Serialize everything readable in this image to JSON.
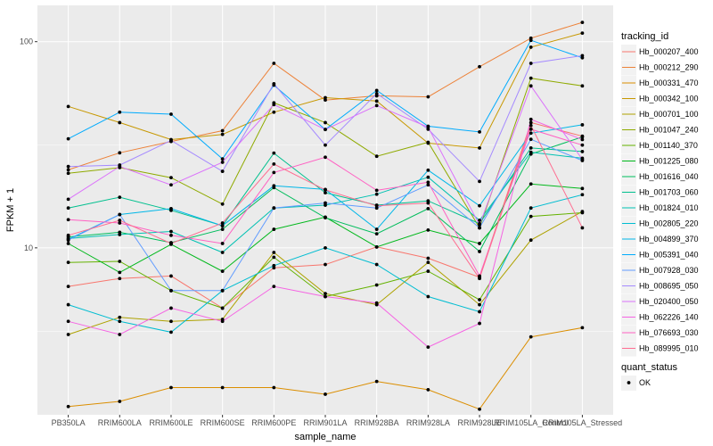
{
  "chart_data": {
    "type": "line",
    "x_label": "sample_name",
    "y_label": "FPKM + 1",
    "y_scale": "log10",
    "y_range": [
      1.55,
      150
    ],
    "y_ticks": [
      10,
      100
    ],
    "y_tick_labels": [
      "10",
      "100"
    ],
    "grid": true,
    "categories": [
      "PB350LA",
      "RRIM600LA",
      "RRIM600LE",
      "RRIM600SE",
      "RRIM600PE",
      "RRIM901LA",
      "RRIM928BA",
      "RRIM928LA",
      "RRIM928LE",
      "RRIM105LA_Control",
      "RRIM105LA_Stressed"
    ],
    "series": [
      {
        "name": "Hb_000207_400",
        "color": "#F8766D",
        "values": [
          6.5,
          7.1,
          7.3,
          5.1,
          8.0,
          8.3,
          10.1,
          8.9,
          7.2,
          40.5,
          34.8
        ]
      },
      {
        "name": "Hb_000212_290",
        "color": "#EC8239",
        "values": [
          23.9,
          28.9,
          32.8,
          37.0,
          78.5,
          52.1,
          54.6,
          54.0,
          75.6,
          104.0,
          124.0
        ]
      },
      {
        "name": "Hb_000331_470",
        "color": "#DB8E00",
        "values": [
          1.7,
          1.8,
          2.1,
          2.1,
          2.1,
          1.95,
          2.25,
          2.05,
          1.65,
          3.7,
          4.1
        ]
      },
      {
        "name": "Hb_000342_100",
        "color": "#C79800",
        "values": [
          48.5,
          40.5,
          33.5,
          35.5,
          45.5,
          53.5,
          51.5,
          32.2,
          30.5,
          94.0,
          110.0
        ]
      },
      {
        "name": "Hb_000701_100",
        "color": "#AEA200",
        "values": [
          3.8,
          4.6,
          4.4,
          4.5,
          9.5,
          6.0,
          5.3,
          8.5,
          5.3,
          10.9,
          15.0
        ]
      },
      {
        "name": "Hb_001047_240",
        "color": "#8FAA00",
        "values": [
          23.0,
          24.5,
          21.9,
          16.3,
          50.5,
          40.5,
          27.8,
          32.5,
          12.5,
          66.5,
          61.0
        ]
      },
      {
        "name": "Hb_001140_370",
        "color": "#64B200",
        "values": [
          8.5,
          8.6,
          6.2,
          5.1,
          9.0,
          5.8,
          6.6,
          7.7,
          5.6,
          14.2,
          14.8
        ]
      },
      {
        "name": "Hb_001225_080",
        "color": "#00B81B",
        "values": [
          10.5,
          7.6,
          10.4,
          7.7,
          12.3,
          14.1,
          10.1,
          12.2,
          10.5,
          20.4,
          19.4
        ]
      },
      {
        "name": "Hb_001616_040",
        "color": "#00BD5C",
        "values": [
          11.3,
          11.9,
          10.6,
          12.3,
          19.6,
          14.0,
          11.7,
          15.5,
          9.6,
          28.5,
          34.5
        ]
      },
      {
        "name": "Hb_001703_060",
        "color": "#00C08E",
        "values": [
          15.6,
          17.6,
          15.2,
          12.8,
          28.8,
          18.5,
          16.1,
          16.9,
          13.1,
          30.5,
          29.3
        ]
      },
      {
        "name": "Hb_001824_010",
        "color": "#00C1B2",
        "values": [
          11.1,
          11.6,
          12.0,
          9.5,
          15.6,
          16.1,
          18.2,
          22.0,
          13.6,
          29.1,
          27.2
        ]
      },
      {
        "name": "Hb_002805_220",
        "color": "#00BDD1",
        "values": [
          5.3,
          4.4,
          3.9,
          6.2,
          8.2,
          10.0,
          8.3,
          5.8,
          4.9,
          15.6,
          18.1
        ]
      },
      {
        "name": "Hb_004899_370",
        "color": "#00B7E8",
        "values": [
          11.0,
          14.5,
          15.5,
          12.8,
          20.0,
          19.2,
          12.3,
          23.8,
          16.0,
          36.0,
          39.5
        ]
      },
      {
        "name": "Hb_005391_040",
        "color": "#00ABFD",
        "values": [
          33.8,
          45.5,
          44.5,
          27.0,
          61.5,
          37.5,
          58.0,
          38.9,
          36.5,
          101.5,
          83.5
        ]
      },
      {
        "name": "Hb_007928_030",
        "color": "#619CFF",
        "values": [
          10.9,
          14.5,
          6.2,
          6.2,
          15.6,
          16.5,
          15.6,
          20.2,
          12.5,
          33.6,
          26.5
        ]
      },
      {
        "name": "Hb_008695_050",
        "color": "#A58AFF",
        "values": [
          24.8,
          25.2,
          33.2,
          23.5,
          62.5,
          31.5,
          56.0,
          37.6,
          21.0,
          78.5,
          85.5
        ]
      },
      {
        "name": "Hb_020400_050",
        "color": "#DB72FB",
        "values": [
          17.2,
          24.8,
          20.2,
          26.0,
          49.5,
          37.5,
          49.0,
          38.5,
          12.9,
          61.0,
          26.8
        ]
      },
      {
        "name": "Hb_062226_140",
        "color": "#F564E3",
        "values": [
          4.4,
          3.8,
          5.1,
          4.4,
          6.5,
          5.8,
          5.4,
          3.3,
          4.3,
          42.0,
          33.5
        ]
      },
      {
        "name": "Hb_076693_030",
        "color": "#FF61C3",
        "values": [
          13.7,
          13.2,
          11.5,
          10.5,
          23.2,
          27.5,
          19.0,
          20.8,
          7.3,
          37.6,
          31.5
        ]
      },
      {
        "name": "Hb_089995_010",
        "color": "#FF6C90",
        "values": [
          11.5,
          13.6,
          10.5,
          13.2,
          25.5,
          19.1,
          16.0,
          16.5,
          7.1,
          39.2,
          12.5
        ]
      }
    ],
    "legend_title": "tracking_id",
    "legend_position": "right",
    "shape_legend_title": "quant_status",
    "shape_legend_items": [
      "OK"
    ]
  }
}
